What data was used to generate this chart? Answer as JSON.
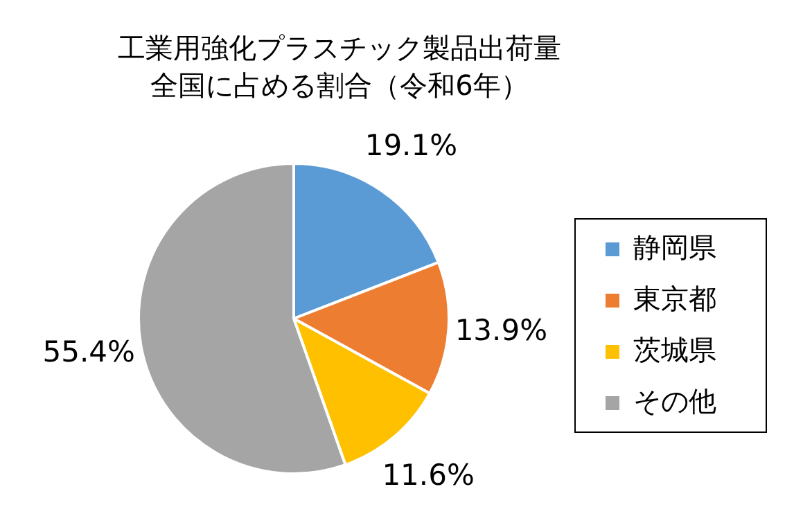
{
  "chart_data": {
    "type": "pie",
    "title": "工業用強化プラスチック製品出荷量",
    "subtitle": "全国に占める割合（令和6年）",
    "categories": [
      "静岡県",
      "東京都",
      "茨城県",
      "その他"
    ],
    "values": [
      19.1,
      13.9,
      11.6,
      55.4
    ],
    "value_labels": [
      "19.1%",
      "13.9%",
      "11.6%",
      "55.4%"
    ],
    "colors": [
      "#5b9bd5",
      "#ed7d31",
      "#ffc000",
      "#a5a5a5"
    ],
    "legend": "right"
  }
}
